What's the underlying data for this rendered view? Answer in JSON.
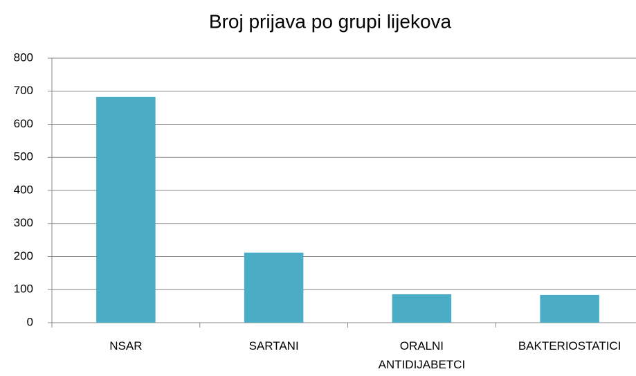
{
  "chart_data": {
    "type": "bar",
    "title": "Broj prijava po grupi lijekova",
    "categories": [
      "NSAR",
      "SARTANI",
      "ORALNI ANTIDIJABETCI",
      "BAKTERIOSTATICI"
    ],
    "values": [
      683,
      212,
      86,
      84
    ],
    "color": "#4bacc6",
    "ylim": [
      0,
      800
    ],
    "yticks": [
      0,
      100,
      200,
      300,
      400,
      500,
      600,
      700,
      800
    ],
    "grid": true
  }
}
